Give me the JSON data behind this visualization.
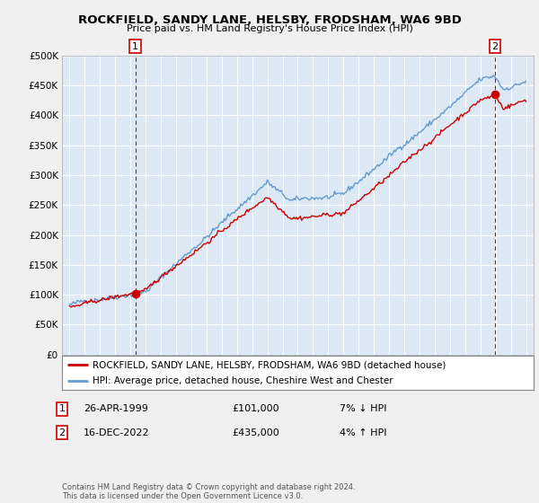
{
  "title": "ROCKFIELD, SANDY LANE, HELSBY, FRODSHAM, WA6 9BD",
  "subtitle": "Price paid vs. HM Land Registry's House Price Index (HPI)",
  "legend_line1": "ROCKFIELD, SANDY LANE, HELSBY, FRODSHAM, WA6 9BD (detached house)",
  "legend_line2": "HPI: Average price, detached house, Cheshire West and Chester",
  "annotation1_label": "1",
  "annotation1_date": "26-APR-1999",
  "annotation1_price": "£101,000",
  "annotation1_hpi": "7% ↓ HPI",
  "annotation2_label": "2",
  "annotation2_date": "16-DEC-2022",
  "annotation2_price": "£435,000",
  "annotation2_hpi": "4% ↑ HPI",
  "footer": "Contains HM Land Registry data © Crown copyright and database right 2024.\nThis data is licensed under the Open Government Licence v3.0.",
  "red_line_color": "#cc0000",
  "blue_line_color": "#6699cc",
  "background_color": "#f0f0f0",
  "plot_bg_color": "#dce9f5",
  "grid_color": "#ffffff",
  "sale1_x": 1999.32,
  "sale1_y": 101000,
  "sale2_x": 2022.96,
  "sale2_y": 435000,
  "ylim": [
    0,
    500000
  ],
  "xlim": [
    1994.5,
    2025.5
  ],
  "yticks": [
    0,
    50000,
    100000,
    150000,
    200000,
    250000,
    300000,
    350000,
    400000,
    450000,
    500000
  ],
  "xticks": [
    1995,
    1996,
    1997,
    1998,
    1999,
    2000,
    2001,
    2002,
    2003,
    2004,
    2005,
    2006,
    2007,
    2008,
    2009,
    2010,
    2011,
    2012,
    2013,
    2014,
    2015,
    2016,
    2017,
    2018,
    2019,
    2020,
    2021,
    2022,
    2023,
    2024,
    2025
  ]
}
